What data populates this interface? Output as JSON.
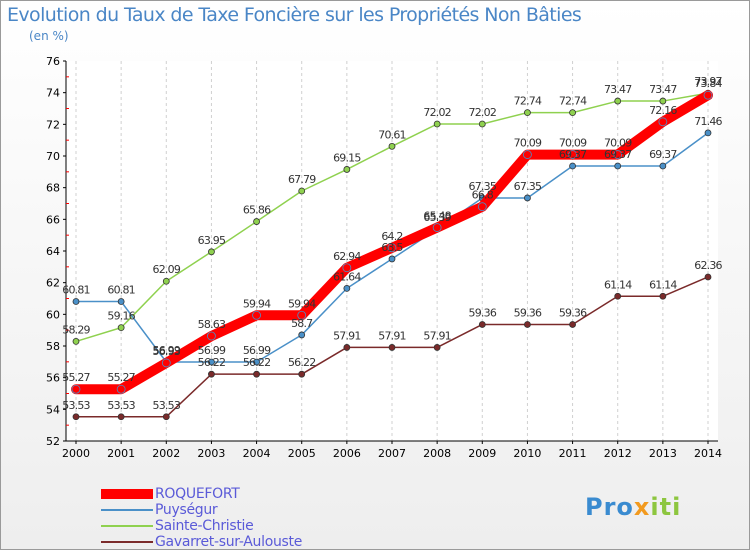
{
  "chart_data": {
    "type": "line",
    "title": "Evolution du Taux de Taxe Foncière sur les Propriétés Non Bâties",
    "subtitle": "(en %)",
    "x": [
      "2000",
      "2001",
      "2002",
      "2003",
      "2004",
      "2005",
      "2006",
      "2007",
      "2008",
      "2009",
      "2010",
      "2011",
      "2012",
      "2013",
      "2014"
    ],
    "yticks": [
      52,
      54,
      56,
      58,
      60,
      62,
      64,
      66,
      68,
      70,
      72,
      74,
      76
    ],
    "ylim": [
      52,
      76
    ],
    "grid": "vertical-dashed",
    "legend": "bottom-left",
    "series": [
      {
        "name": "ROQUEFORT",
        "color": "#ff0000",
        "values": [
          55.27,
          55.27,
          56.93,
          58.63,
          59.94,
          59.94,
          62.94,
          64.2,
          65.48,
          66.8,
          70.09,
          70.09,
          70.09,
          72.16,
          73.84
        ],
        "labels": [
          "55.27",
          "55.27",
          "56.93",
          "58.63",
          "59.94",
          "59.94",
          "62.94",
          "64.2",
          "65.48",
          "66.8",
          "70.09",
          "70.09",
          "70.09",
          "72.16",
          "73.84"
        ]
      },
      {
        "name": "Puységur",
        "color": "#4a90c8",
        "values": [
          60.81,
          60.81,
          56.99,
          56.99,
          56.99,
          58.7,
          61.64,
          63.5,
          65.39,
          67.35,
          67.35,
          69.37,
          69.37,
          69.37,
          71.46
        ],
        "labels": [
          "60.81",
          "60.81",
          "56.99",
          "56.99",
          "56.99",
          "58.7",
          "61.64",
          "63.5",
          "65.39",
          "67.35",
          "67.35",
          "69.37",
          "69.37",
          "69.37",
          "71.46"
        ]
      },
      {
        "name": "Sainte-Christie",
        "color": "#8fd14f",
        "values": [
          58.29,
          59.16,
          62.09,
          63.95,
          65.86,
          67.79,
          69.15,
          70.61,
          72.02,
          72.02,
          72.74,
          72.74,
          73.47,
          73.47,
          73.97
        ],
        "labels": [
          "58.29",
          "59.16",
          "62.09",
          "63.95",
          "65.86",
          "67.79",
          "69.15",
          "70.61",
          "72.02",
          "72.02",
          "72.74",
          "72.74",
          "73.47",
          "73.47",
          "73.97"
        ]
      },
      {
        "name": "Gavarret-sur-Aulouste",
        "color": "#7a2a2a",
        "values": [
          53.53,
          53.53,
          53.53,
          56.22,
          56.22,
          56.22,
          57.91,
          57.91,
          57.91,
          59.36,
          59.36,
          59.36,
          61.14,
          61.14,
          62.36
        ],
        "labels": [
          "53.53",
          "53.53",
          "53.53",
          "56.22",
          "56.22",
          "56.22",
          "57.91",
          "57.91",
          "57.91",
          "59.36",
          "59.36",
          "59.36",
          "61.14",
          "61.14",
          "62.36"
        ]
      }
    ]
  },
  "brand": {
    "part1": "Pro",
    "part2": "x",
    "part3": "iti"
  }
}
